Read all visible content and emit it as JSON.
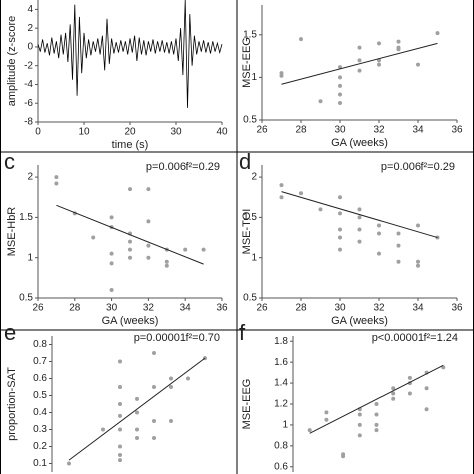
{
  "chart_data": [
    {
      "type": "line",
      "y_label": "amplitude (z-score",
      "x_label": "time (s)",
      "color": "#000000",
      "x": [
        0,
        0.5,
        1,
        1.5,
        2,
        2.5,
        3,
        3.5,
        4,
        4.5,
        5,
        5.5,
        6,
        6.5,
        7,
        7.5,
        8,
        8.5,
        9,
        9.5,
        10,
        10.5,
        11,
        11.5,
        12,
        12.5,
        13,
        13.5,
        14,
        14.5,
        15,
        15.5,
        16,
        16.5,
        17,
        17.5,
        18,
        18.5,
        19,
        19.5,
        20,
        20.5,
        21,
        21.5,
        22,
        22.5,
        23,
        23.5,
        24,
        24.5,
        25,
        25.5,
        26,
        26.5,
        27,
        27.5,
        28,
        28.5,
        29,
        29.5,
        30,
        30.5,
        31,
        31.5,
        32,
        32.5,
        33,
        33.5,
        34,
        34.5,
        35,
        35.5,
        36,
        36.5,
        37,
        37.5,
        38,
        38.5,
        39,
        39.5,
        40
      ],
      "values": [
        0.3,
        -0.5,
        0.8,
        -0.6,
        0.4,
        -0.9,
        1.0,
        -0.7,
        0.6,
        -1.2,
        1.3,
        -0.8,
        1.5,
        -1.6,
        2.4,
        -3.5,
        4.5,
        -5.2,
        3.2,
        -2.8,
        1.5,
        -1.2,
        0.8,
        -0.9,
        0.6,
        -0.5,
        0.9,
        -0.8,
        1.2,
        -2.5,
        3.0,
        -1.8,
        0.9,
        -0.7,
        0.5,
        -0.6,
        0.7,
        -0.5,
        0.6,
        -0.8,
        0.9,
        -0.6,
        1.2,
        -1.5,
        1.0,
        -0.8,
        0.7,
        -0.9,
        0.6,
        -0.5,
        0.8,
        -0.7,
        0.6,
        -0.5,
        0.7,
        -0.6,
        0.5,
        -0.7,
        0.6,
        -0.8,
        0.9,
        -1.5,
        2.0,
        -3.0,
        5.0,
        -6.5,
        3.5,
        -2.0,
        1.2,
        -0.8,
        0.6,
        -0.5,
        0.7,
        -0.6,
        0.5,
        -0.7,
        0.6,
        -0.5,
        0.4,
        -0.6,
        0.3
      ],
      "xlim": [
        0,
        40
      ],
      "xticks": [
        0,
        10,
        20,
        30,
        40
      ],
      "ylim": [
        -8,
        5
      ],
      "yticks": [
        -8,
        -6,
        -4,
        -2,
        0,
        2,
        4
      ]
    },
    {
      "type": "scatter",
      "y_label": "MSE-EEG",
      "x_label": "GA (weeks)",
      "color": "#a0a0a0",
      "x": [
        27,
        27,
        28,
        29,
        30,
        30,
        30,
        30,
        30,
        31,
        31,
        31,
        32,
        32,
        32,
        33,
        33,
        33,
        34,
        35
      ],
      "values": [
        1.05,
        1.02,
        1.45,
        0.72,
        0.7,
        0.8,
        0.9,
        1.0,
        1.12,
        1.35,
        1.08,
        1.2,
        1.15,
        1.4,
        1.2,
        1.33,
        1.42,
        1.35,
        1.15,
        1.52
      ],
      "fit_x": [
        27,
        35
      ],
      "fit_y": [
        0.92,
        1.4
      ],
      "xlim": [
        26,
        36
      ],
      "xticks": [
        26,
        28,
        30,
        32,
        34,
        36
      ],
      "ylim": [
        0.5,
        1.85
      ],
      "yticks": [
        0.5,
        1,
        1.5
      ]
    },
    {
      "type": "scatter",
      "panel": "c",
      "annotations": [
        "p=0.006",
        "f²=0.29"
      ],
      "y_label": "MSE-HbR",
      "x_label": "GA (weeks)",
      "color": "#a0a0a0",
      "x": [
        27,
        27,
        28,
        29,
        30,
        30,
        30,
        30,
        30,
        31,
        31,
        31,
        31,
        31,
        32,
        32,
        32,
        32,
        33,
        33,
        33,
        34,
        35
      ],
      "values": [
        2.0,
        1.92,
        1.55,
        1.25,
        1.5,
        1.38,
        1.05,
        0.93,
        0.6,
        1.85,
        1.3,
        1.2,
        1.1,
        1.0,
        1.85,
        1.45,
        1.15,
        1.0,
        1.1,
        0.95,
        0.9,
        1.1,
        1.1
      ],
      "fit_x": [
        27,
        35
      ],
      "fit_y": [
        1.65,
        0.92
      ],
      "xlim": [
        26,
        36
      ],
      "xticks": [
        26,
        28,
        30,
        32,
        34,
        36
      ],
      "ylim": [
        0.5,
        2.15
      ],
      "yticks": [
        0.5,
        1,
        1.5,
        2
      ]
    },
    {
      "type": "scatter",
      "panel": "d",
      "annotations": [
        "p=0.006",
        "f²=0.29"
      ],
      "y_label": "MSE-TOI",
      "x_label": "GA (weeks)",
      "color": "#a0a0a0",
      "x": [
        27,
        27,
        28,
        29,
        30,
        30,
        30,
        30,
        30,
        31,
        31,
        31,
        31,
        32,
        32,
        32,
        33,
        33,
        33,
        34,
        34,
        34,
        35
      ],
      "values": [
        1.9,
        1.75,
        1.8,
        1.6,
        1.75,
        1.55,
        1.35,
        1.25,
        1.1,
        1.5,
        1.6,
        1.35,
        1.2,
        1.05,
        1.3,
        1.4,
        0.95,
        1.15,
        1.3,
        0.95,
        0.9,
        1.4,
        1.25
      ],
      "fit_x": [
        27,
        35
      ],
      "fit_y": [
        1.82,
        1.25
      ],
      "xlim": [
        26,
        36
      ],
      "xticks": [
        26,
        28,
        30,
        32,
        34,
        36
      ],
      "ylim": [
        0.5,
        2.15
      ],
      "yticks": [
        0.5,
        1,
        1.5,
        2
      ]
    },
    {
      "type": "scatter",
      "panel": "e",
      "annotations": [
        "p=0.00001",
        "f²=0.70"
      ],
      "y_label": "proportion-SAT",
      "color": "#a0a0a0",
      "x": [
        27,
        29,
        30,
        30,
        30,
        30,
        30,
        30,
        30,
        30,
        31,
        31,
        31,
        31,
        32,
        32,
        32,
        32,
        33,
        33,
        33,
        34,
        35
      ],
      "values": [
        0.1,
        0.3,
        0.7,
        0.55,
        0.45,
        0.38,
        0.3,
        0.2,
        0.15,
        0.12,
        0.48,
        0.4,
        0.3,
        0.25,
        0.75,
        0.55,
        0.35,
        0.25,
        0.6,
        0.35,
        0.55,
        0.6,
        0.72
      ],
      "fit_x": [
        27,
        35
      ],
      "fit_y": [
        0.12,
        0.72
      ],
      "xlim": [
        26,
        36
      ],
      "ylim": [
        0.05,
        0.85
      ],
      "yticks": [
        0.1,
        0.2,
        0.3,
        0.4,
        0.5,
        0.6,
        0.7,
        0.8
      ]
    },
    {
      "type": "scatter",
      "panel": "f",
      "annotations": [
        "p<0.00001",
        "f²=1.24"
      ],
      "y_label": "MSE-EEG",
      "color": "#a0a0a0",
      "x": [
        27,
        28,
        28,
        29,
        29,
        30,
        30,
        30,
        30,
        31,
        31,
        31,
        32,
        32,
        33,
        33,
        33,
        34,
        34,
        34,
        35,
        32,
        31
      ],
      "values": [
        0.95,
        1.05,
        1.12,
        0.72,
        0.7,
        0.9,
        1.0,
        1.1,
        1.15,
        1.0,
        1.1,
        1.2,
        1.25,
        1.35,
        1.3,
        1.45,
        1.4,
        1.5,
        1.35,
        1.15,
        1.55,
        1.3,
        0.95
      ],
      "fit_x": [
        27,
        35
      ],
      "fit_y": [
        0.92,
        1.57
      ],
      "xlim": [
        26,
        36
      ],
      "ylim": [
        0.55,
        1.85
      ],
      "yticks": [
        0.6,
        0.8,
        1,
        1.2,
        1.4,
        1.6,
        1.8
      ]
    }
  ]
}
